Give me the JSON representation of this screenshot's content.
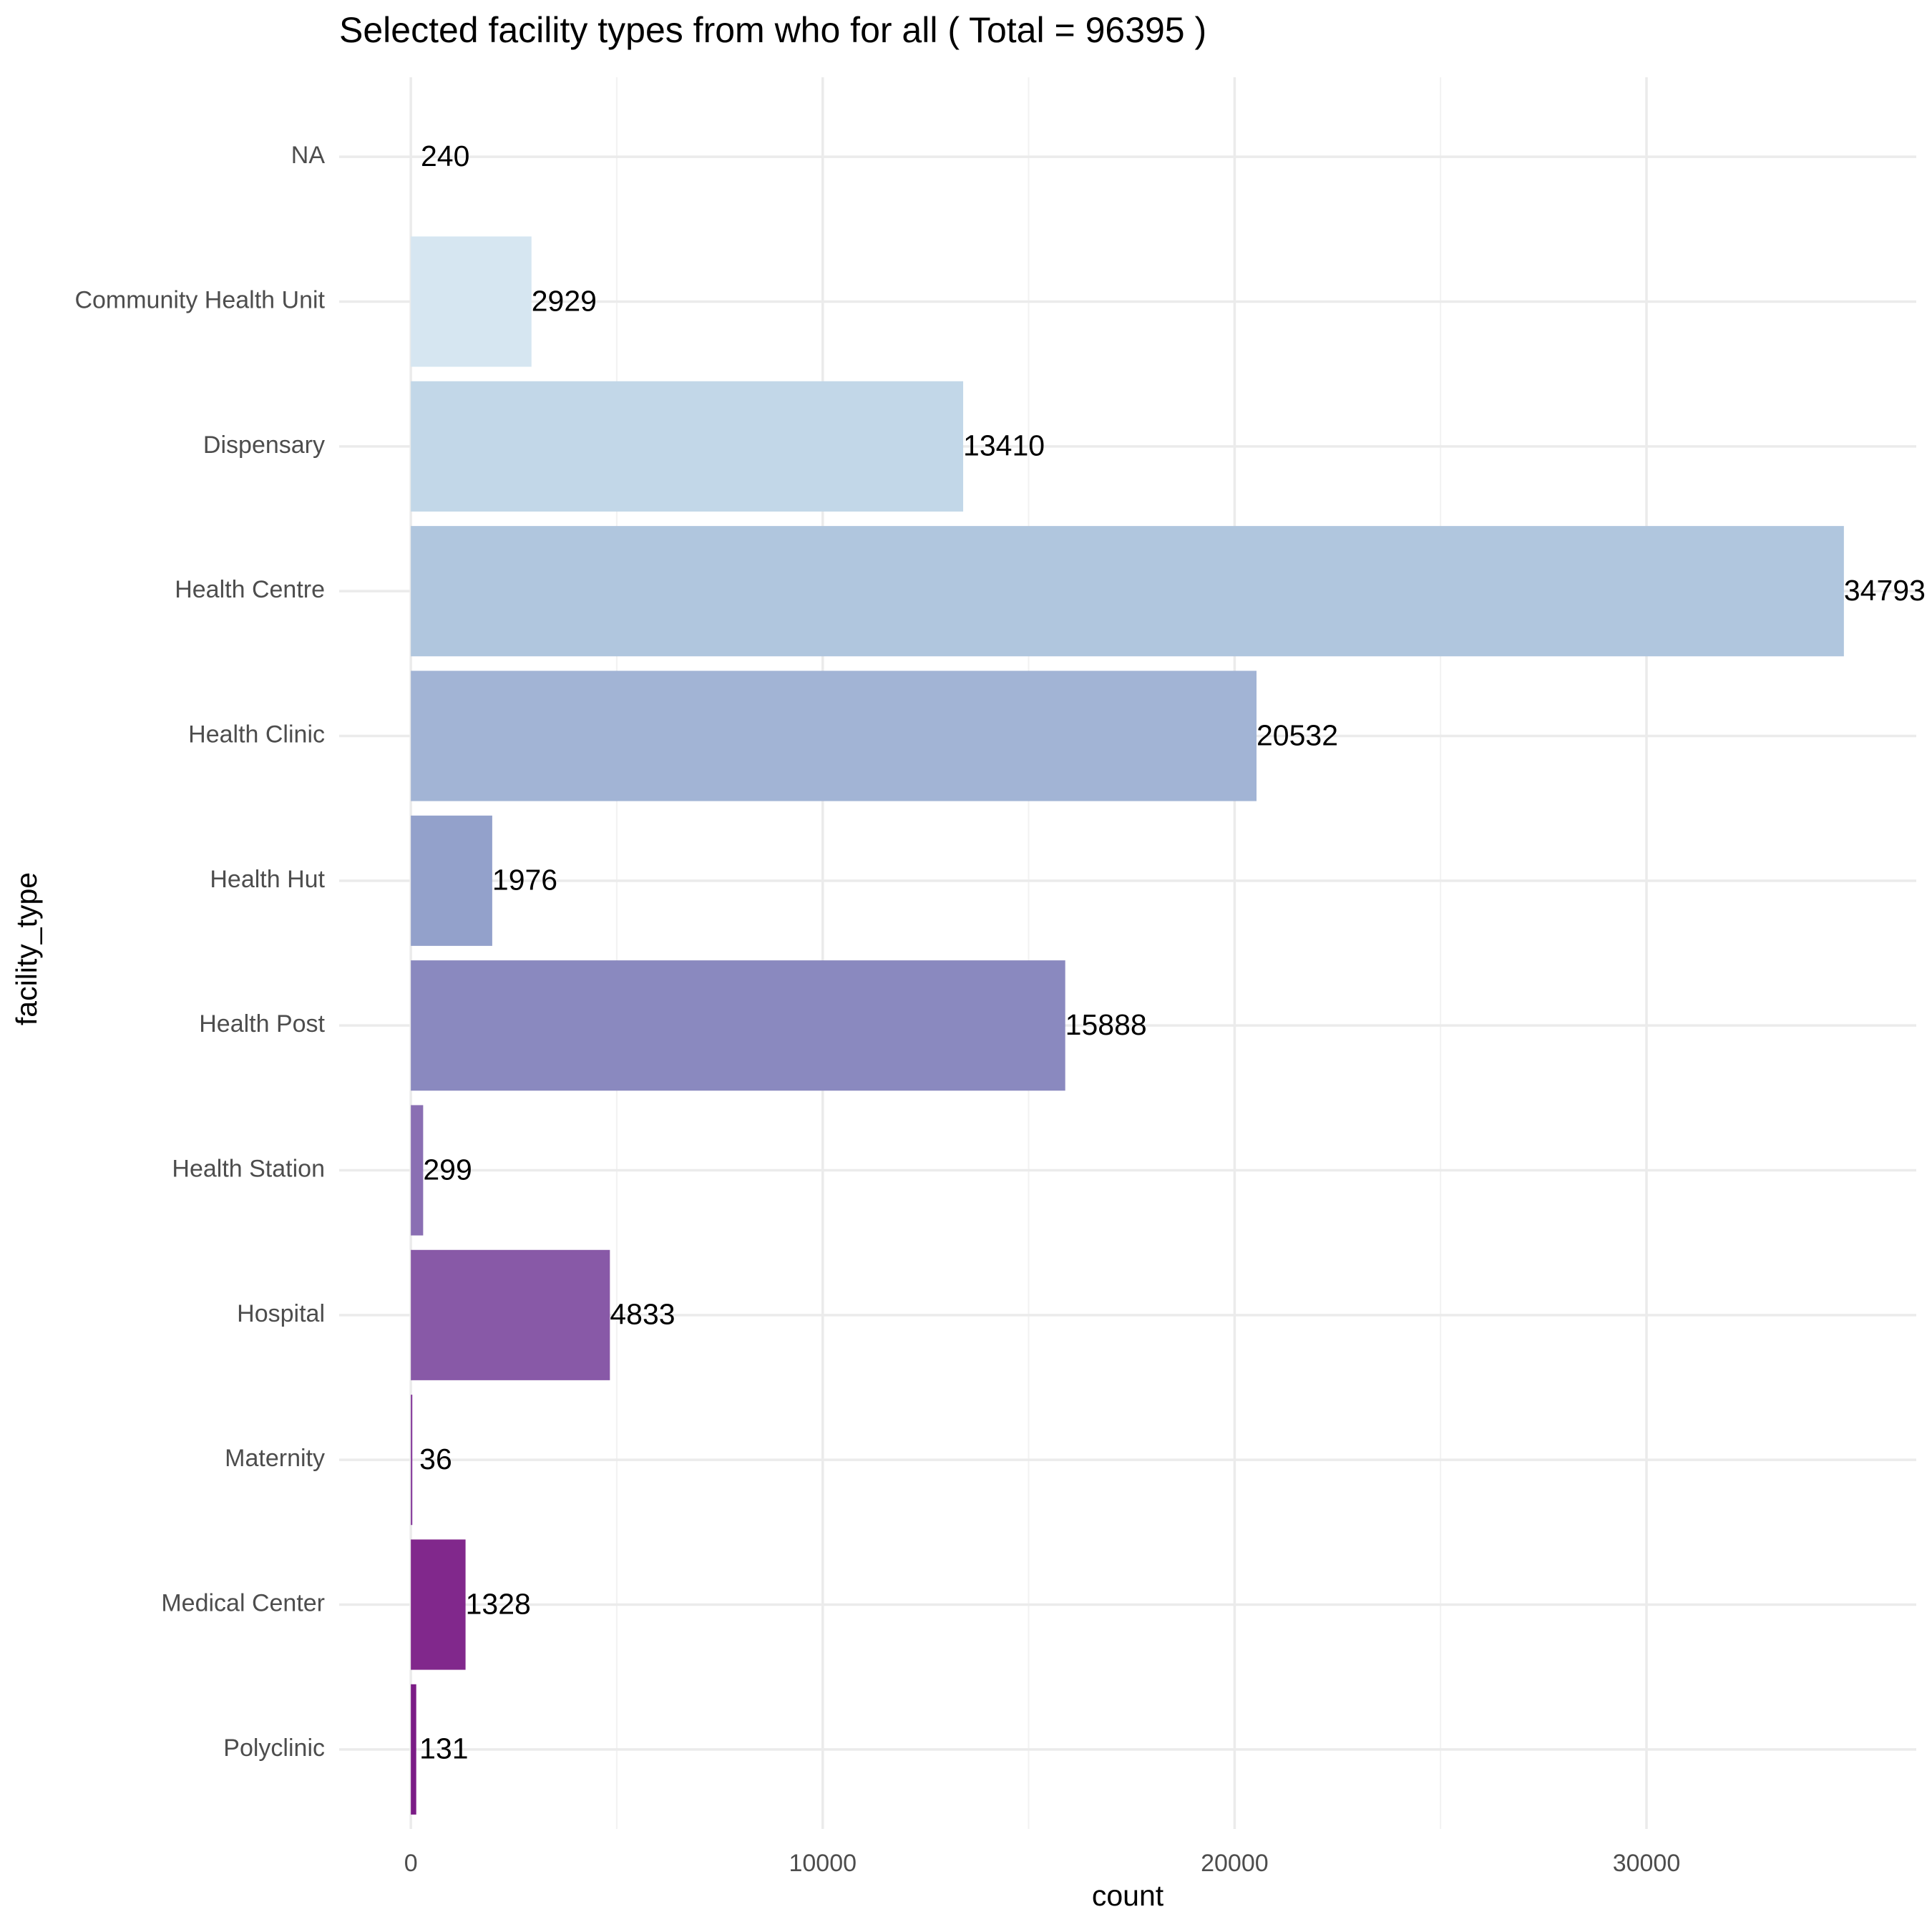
{
  "chart_data": {
    "type": "bar",
    "orientation": "horizontal",
    "title": "Selected facility types from who for all ( Total = 96395 )",
    "x_label": "count",
    "y_label": "facility_type",
    "categories": [
      "NA",
      "Community Health Unit",
      "Dispensary",
      "Health Centre",
      "Health Clinic",
      "Health Hut",
      "Health Post",
      "Health Station",
      "Hospital",
      "Maternity",
      "Medical Center",
      "Polyclinic"
    ],
    "values": [
      240,
      2929,
      13410,
      34793,
      20532,
      1976,
      15888,
      299,
      4833,
      36,
      1328,
      131
    ],
    "colors": [
      null,
      "#d6e6f1",
      "#c2d7e8",
      "#b0c6de",
      "#a2b4d5",
      "#93a1cb",
      "#8a89bf",
      "#8a6fb3",
      "#8859a7",
      "#84389a",
      "#81288c",
      "#7b1c86"
    ],
    "xlim": [
      -1740,
      36550
    ],
    "xticks": [
      0,
      10000,
      20000,
      30000
    ],
    "grid": true
  }
}
